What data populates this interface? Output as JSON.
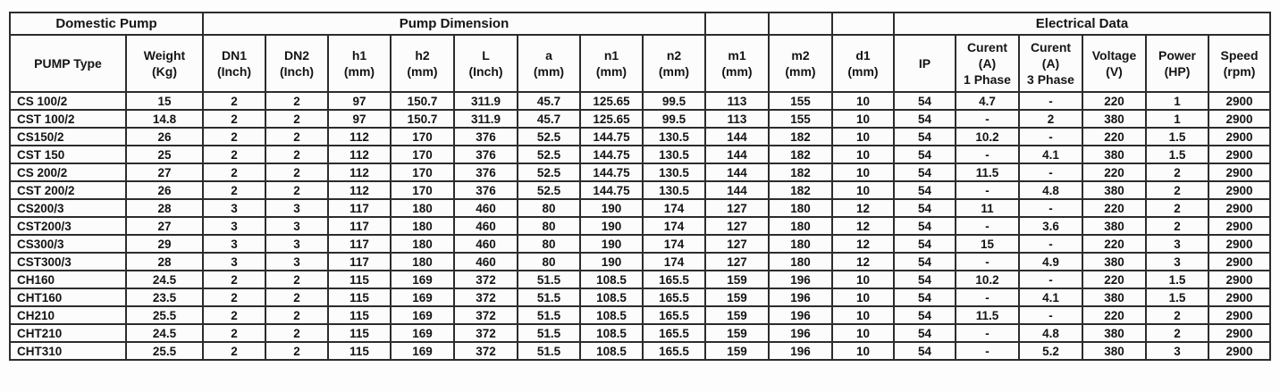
{
  "colors": {
    "border": "#2c2c2c",
    "text": "#141414",
    "background": "#fdfdfd"
  },
  "table": {
    "group_headers": [
      {
        "label": "Domestic Pump",
        "colspan": 2
      },
      {
        "label": "Pump Dimension",
        "colspan": 8
      },
      {
        "label": "",
        "colspan": 1
      },
      {
        "label": "",
        "colspan": 1
      },
      {
        "label": "",
        "colspan": 1
      },
      {
        "label": "Electrical Data",
        "colspan": 6
      }
    ],
    "columns": [
      {
        "id": "pump-type",
        "lines": [
          "PUMP Type"
        ]
      },
      {
        "id": "weight",
        "lines": [
          "Weight",
          "(Kg)"
        ]
      },
      {
        "id": "dn1",
        "lines": [
          "DN1",
          "(Inch)"
        ]
      },
      {
        "id": "dn2",
        "lines": [
          "DN2",
          "(Inch)"
        ]
      },
      {
        "id": "h1",
        "lines": [
          "h1",
          "(mm)"
        ]
      },
      {
        "id": "h2",
        "lines": [
          "h2",
          "(mm)"
        ]
      },
      {
        "id": "l",
        "lines": [
          "L",
          "(Inch)"
        ]
      },
      {
        "id": "a",
        "lines": [
          "a",
          "(mm)"
        ]
      },
      {
        "id": "n1",
        "lines": [
          "n1",
          "(mm)"
        ]
      },
      {
        "id": "n2",
        "lines": [
          "n2",
          "(mm)"
        ]
      },
      {
        "id": "m1",
        "lines": [
          "m1",
          "(mm)"
        ]
      },
      {
        "id": "m2",
        "lines": [
          "m2",
          "(mm)"
        ]
      },
      {
        "id": "d1",
        "lines": [
          "d1",
          "(mm)"
        ]
      },
      {
        "id": "ip",
        "lines": [
          "IP"
        ]
      },
      {
        "id": "curent-1-phase",
        "lines": [
          "Curent",
          "(A)",
          "1 Phase"
        ]
      },
      {
        "id": "curent-3-phase",
        "lines": [
          "Curent",
          "(A)",
          "3 Phase"
        ]
      },
      {
        "id": "voltage",
        "lines": [
          "Voltage",
          "(V)"
        ]
      },
      {
        "id": "power",
        "lines": [
          "Power",
          "(HP)"
        ]
      },
      {
        "id": "speed",
        "lines": [
          "Speed",
          "(rpm)"
        ]
      }
    ],
    "rows": [
      [
        "CS 100/2",
        "15",
        "2",
        "2",
        "97",
        "150.7",
        "311.9",
        "45.7",
        "125.65",
        "99.5",
        "113",
        "155",
        "10",
        "54",
        "4.7",
        "-",
        "220",
        "1",
        "2900"
      ],
      [
        "CST 100/2",
        "14.8",
        "2",
        "2",
        "97",
        "150.7",
        "311.9",
        "45.7",
        "125.65",
        "99.5",
        "113",
        "155",
        "10",
        "54",
        "-",
        "2",
        "380",
        "1",
        "2900"
      ],
      [
        "CS150/2",
        "26",
        "2",
        "2",
        "112",
        "170",
        "376",
        "52.5",
        "144.75",
        "130.5",
        "144",
        "182",
        "10",
        "54",
        "10.2",
        "-",
        "220",
        "1.5",
        "2900"
      ],
      [
        "CST 150",
        "25",
        "2",
        "2",
        "112",
        "170",
        "376",
        "52.5",
        "144.75",
        "130.5",
        "144",
        "182",
        "10",
        "54",
        "-",
        "4.1",
        "380",
        "1.5",
        "2900"
      ],
      [
        "CS 200/2",
        "27",
        "2",
        "2",
        "112",
        "170",
        "376",
        "52.5",
        "144.75",
        "130.5",
        "144",
        "182",
        "10",
        "54",
        "11.5",
        "-",
        "220",
        "2",
        "2900"
      ],
      [
        "CST 200/2",
        "26",
        "2",
        "2",
        "112",
        "170",
        "376",
        "52.5",
        "144.75",
        "130.5",
        "144",
        "182",
        "10",
        "54",
        "-",
        "4.8",
        "380",
        "2",
        "2900"
      ],
      [
        "CS200/3",
        "28",
        "3",
        "3",
        "117",
        "180",
        "460",
        "80",
        "190",
        "174",
        "127",
        "180",
        "12",
        "54",
        "11",
        "-",
        "220",
        "2",
        "2900"
      ],
      [
        "CST200/3",
        "27",
        "3",
        "3",
        "117",
        "180",
        "460",
        "80",
        "190",
        "174",
        "127",
        "180",
        "12",
        "54",
        "-",
        "3.6",
        "380",
        "2",
        "2900"
      ],
      [
        "CS300/3",
        "29",
        "3",
        "3",
        "117",
        "180",
        "460",
        "80",
        "190",
        "174",
        "127",
        "180",
        "12",
        "54",
        "15",
        "-",
        "220",
        "3",
        "2900"
      ],
      [
        "CST300/3",
        "28",
        "3",
        "3",
        "117",
        "180",
        "460",
        "80",
        "190",
        "174",
        "127",
        "180",
        "12",
        "54",
        "-",
        "4.9",
        "380",
        "3",
        "2900"
      ],
      [
        "CH160",
        "24.5",
        "2",
        "2",
        "115",
        "169",
        "372",
        "51.5",
        "108.5",
        "165.5",
        "159",
        "196",
        "10",
        "54",
        "10.2",
        "-",
        "220",
        "1.5",
        "2900"
      ],
      [
        "CHT160",
        "23.5",
        "2",
        "2",
        "115",
        "169",
        "372",
        "51.5",
        "108.5",
        "165.5",
        "159",
        "196",
        "10",
        "54",
        "-",
        "4.1",
        "380",
        "1.5",
        "2900"
      ],
      [
        "CH210",
        "25.5",
        "2",
        "2",
        "115",
        "169",
        "372",
        "51.5",
        "108.5",
        "165.5",
        "159",
        "196",
        "10",
        "54",
        "11.5",
        "-",
        "220",
        "2",
        "2900"
      ],
      [
        "CHT210",
        "24.5",
        "2",
        "2",
        "115",
        "169",
        "372",
        "51.5",
        "108.5",
        "165.5",
        "159",
        "196",
        "10",
        "54",
        "-",
        "4.8",
        "380",
        "2",
        "2900"
      ],
      [
        "CHT310",
        "25.5",
        "2",
        "2",
        "115",
        "169",
        "372",
        "51.5",
        "108.5",
        "165.5",
        "159",
        "196",
        "10",
        "54",
        "-",
        "5.2",
        "380",
        "3",
        "2900"
      ]
    ]
  }
}
